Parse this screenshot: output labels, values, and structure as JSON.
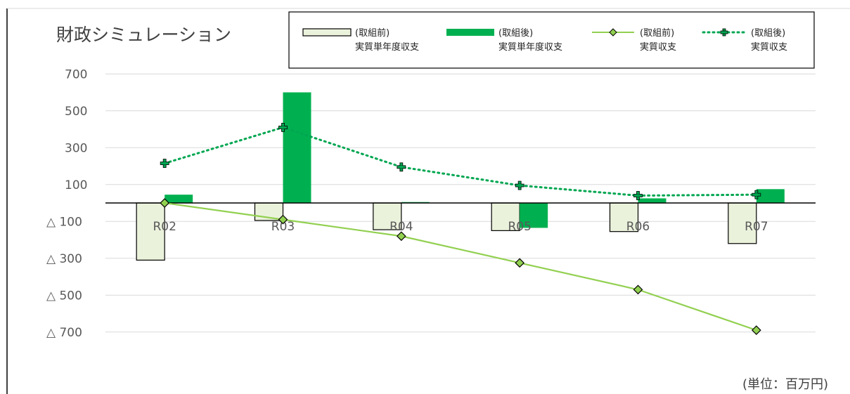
{
  "chart_data": {
    "type": "bar",
    "title": "財政シミュレーション",
    "unit_note": "(単位：百万円)",
    "categories": [
      "R02",
      "R03",
      "R04",
      "R05",
      "R06",
      "R07"
    ],
    "y_ticks": [
      {
        "value": 700,
        "label": "700"
      },
      {
        "value": 500,
        "label": "500"
      },
      {
        "value": 300,
        "label": "300"
      },
      {
        "value": 100,
        "label": "100"
      },
      {
        "value": -100,
        "label": "△ 100"
      },
      {
        "value": -300,
        "label": "△ 300"
      },
      {
        "value": -500,
        "label": "△ 500"
      },
      {
        "value": -700,
        "label": "△ 700"
      }
    ],
    "ylim": [
      -850,
      700
    ],
    "grid": true,
    "legend_position": "top-right",
    "series": [
      {
        "name_line1": "(取組前)",
        "name_line2": "実質単年度収支",
        "kind": "bar",
        "color": "#EBF2DC",
        "stroke": "#000000",
        "values": [
          -310,
          -95,
          -145,
          -150,
          -155,
          -220
        ]
      },
      {
        "name_line1": "(取組後)",
        "name_line2": "実質単年度収支",
        "kind": "bar",
        "color": "#00B050",
        "stroke": "none",
        "values": [
          45,
          600,
          5,
          -135,
          25,
          75
        ]
      },
      {
        "name_line1": "(取組前)",
        "name_line2": "実質収支",
        "kind": "line",
        "color": "#92D050",
        "marker": "diamond",
        "marker_fill": "#92D050",
        "values": [
          0,
          -90,
          -180,
          -325,
          -470,
          -690
        ]
      },
      {
        "name_line1": "(取組後)",
        "name_line2": "実質収支",
        "kind": "line-dotted",
        "color": "#00A651",
        "marker": "cross",
        "values": [
          215,
          410,
          195,
          95,
          40,
          45
        ]
      }
    ]
  }
}
